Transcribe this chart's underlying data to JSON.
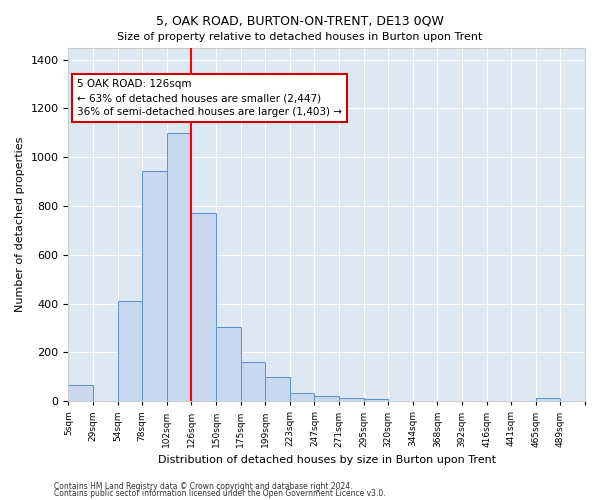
{
  "title": "5, OAK ROAD, BURTON-ON-TRENT, DE13 0QW",
  "subtitle": "Size of property relative to detached houses in Burton upon Trent",
  "xlabel": "Distribution of detached houses by size in Burton upon Trent",
  "ylabel": "Number of detached properties",
  "bin_labels": [
    "5sqm",
    "29sqm",
    "54sqm",
    "78sqm",
    "102sqm",
    "126sqm",
    "150sqm",
    "175sqm",
    "199sqm",
    "223sqm",
    "247sqm",
    "271sqm",
    "295sqm",
    "320sqm",
    "344sqm",
    "368sqm",
    "392sqm",
    "416sqm",
    "441sqm",
    "465sqm",
    "489sqm"
  ],
  "bar_heights": [
    65,
    0,
    410,
    945,
    1100,
    770,
    305,
    160,
    100,
    35,
    20,
    15,
    10,
    0,
    0,
    0,
    0,
    0,
    0,
    15,
    0
  ],
  "bar_color": "#c8d8ee",
  "bar_edge_color": "#6090c0",
  "red_line_x": 5,
  "annotation_text": "5 OAK ROAD: 126sqm\n← 63% of detached houses are smaller (2,447)\n36% of semi-detached houses are larger (1,403) →",
  "annotation_box_facecolor": "#ffffff",
  "annotation_box_edgecolor": "#cc0000",
  "ylim": [
    0,
    1450
  ],
  "yticks": [
    0,
    200,
    400,
    600,
    800,
    1000,
    1200,
    1400
  ],
  "footer_line1": "Contains HM Land Registry data © Crown copyright and database right 2024.",
  "footer_line2": "Contains public sector information licensed under the Open Government Licence v3.0.",
  "fig_bg_color": "#ffffff",
  "plot_bg_color": "#dde8f5"
}
